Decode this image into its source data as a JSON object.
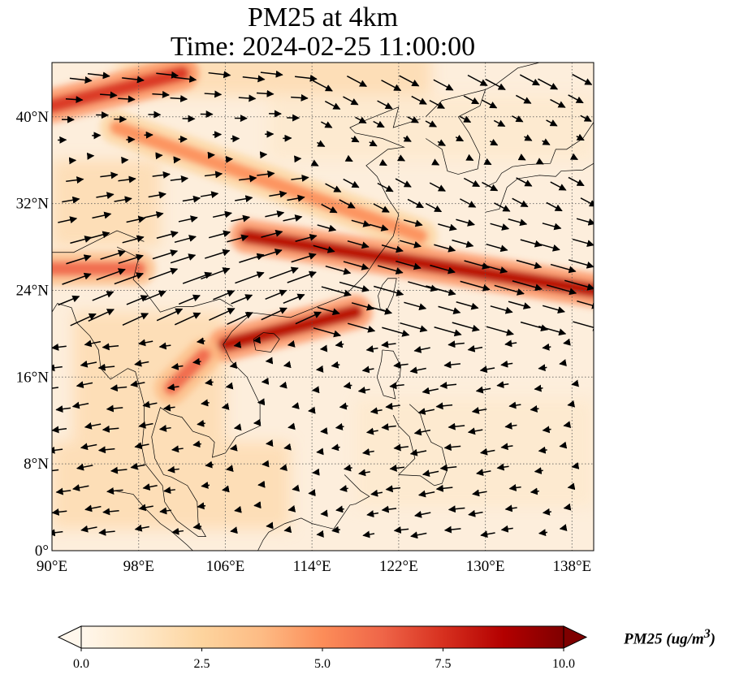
{
  "title": {
    "line1": "PM25 at 4km",
    "line2": "Time: 2024-02-25 11:00:00"
  },
  "map": {
    "projection": "PlateCarree",
    "lon_range": [
      90,
      140
    ],
    "lat_range": [
      0,
      45
    ],
    "gridlines": true,
    "gridline_style": "dotted",
    "lon_ticks": [
      "90°E",
      "98°E",
      "106°E",
      "114°E",
      "122°E",
      "130°E",
      "138°E"
    ],
    "lat_ticks": [
      "0°",
      "8°N",
      "16°N",
      "24°N",
      "32°N",
      "40°N"
    ],
    "field": "PM25",
    "colormap": "OrRd",
    "overlay": "wind vectors",
    "plumes": [
      {
        "from_lon": 90,
        "from_lat": 41,
        "to_lon": 102,
        "to_lat": 44,
        "level": 8
      },
      {
        "from_lon": 96,
        "from_lat": 39,
        "to_lon": 124,
        "to_lat": 29,
        "level": 5
      },
      {
        "from_lon": 108,
        "from_lat": 29,
        "to_lon": 140,
        "to_lat": 24,
        "level": 9
      },
      {
        "from_lon": 106,
        "from_lat": 19,
        "to_lon": 118,
        "to_lat": 22,
        "level": 9
      },
      {
        "from_lon": 90,
        "from_lat": 26,
        "to_lon": 98,
        "to_lat": 26,
        "level": 6
      },
      {
        "from_lon": 101,
        "from_lat": 15,
        "to_lon": 104,
        "to_lat": 18,
        "level": 6
      }
    ]
  },
  "colorbar": {
    "ticks": [
      "0.0",
      "2.5",
      "5.0",
      "7.5",
      "10.0"
    ],
    "min": 0,
    "max": 10,
    "extend": "both",
    "label": "PM25 (ug/m",
    "label_sup": "3",
    "label_end": ")",
    "colors": [
      "#fff7ec",
      "#fee8c8",
      "#fdd49e",
      "#fdbb84",
      "#fc8d59",
      "#ef6548",
      "#d7301f",
      "#b30000",
      "#7f0000"
    ]
  },
  "colors": {
    "ocean_base": "#fdeedc",
    "coastline": "#000000",
    "grid": "#555555",
    "arrow": "#000000"
  }
}
